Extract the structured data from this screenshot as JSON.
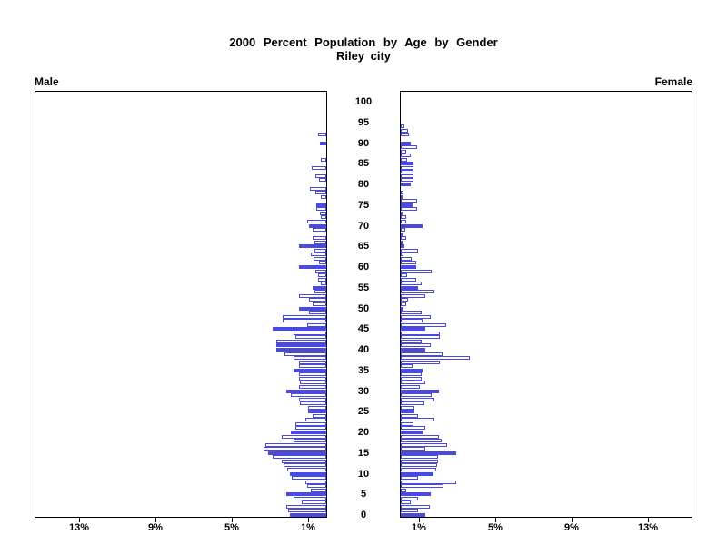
{
  "title": {
    "line1": "2000 Percent Population by Age by Gender",
    "line2": "Riley city"
  },
  "panel_labels": {
    "left": "Male",
    "right": "Female"
  },
  "axis": {
    "x_tick_values_pct": [
      1,
      5,
      9,
      13
    ],
    "x_tick_suffix": "%",
    "x_max_pct": 15.3,
    "age_axis_labels": [
      0,
      5,
      10,
      15,
      20,
      25,
      30,
      35,
      40,
      45,
      50,
      55,
      60,
      65,
      70,
      75,
      80,
      85,
      90,
      95,
      100
    ]
  },
  "colors": {
    "bar_blue": "#4a4ae0",
    "bar_white": "#ffffff",
    "frame_black": "#000000",
    "background": "#ffffff"
  },
  "chart_data": {
    "type": "bar",
    "subtype": "population-pyramid",
    "title": "2000 Percent Population by Age by Gender",
    "subtitle": "Riley city",
    "x_unit": "percent of total population",
    "xlabel_ticks": [
      "13%",
      "9%",
      "5%",
      "1%",
      "1%",
      "5%",
      "9%",
      "13%"
    ],
    "ylabel": "age in single years, 0 bottom to 100 top",
    "age_min": 0,
    "age_max": 100,
    "highlight_rule": "bars at ages divisible by 5 are solid filled blue; other ages are white with blue outline",
    "extra_filled_ages_male": [
      41
    ],
    "series": [
      {
        "name": "Male",
        "side": "left",
        "values_pct_by_age": [
          1.9,
          2.0,
          2.1,
          1.3,
          1.7,
          2.1,
          0.8,
          1.0,
          1.1,
          1.8,
          1.9,
          2.05,
          2.25,
          2.35,
          2.8,
          3.05,
          3.3,
          3.2,
          1.7,
          2.35,
          1.85,
          1.6,
          1.6,
          1.1,
          0.7,
          0.95,
          0.95,
          1.4,
          1.45,
          1.85,
          2.1,
          1.45,
          1.4,
          1.45,
          1.45,
          1.7,
          1.45,
          1.45,
          1.7,
          2.2,
          2.6,
          2.6,
          2.6,
          1.6,
          1.7,
          2.8,
          1.0,
          2.3,
          2.3,
          0.9,
          1.45,
          0.7,
          0.9,
          1.45,
          0.6,
          0.7,
          0.3,
          0.45,
          0.45,
          0.55,
          1.45,
          0.4,
          0.65,
          0.8,
          0.6,
          1.45,
          0.6,
          0.7,
          0,
          0.7,
          0.9,
          1.0,
          0.3,
          0.35,
          0.5,
          0.5,
          0,
          0.3,
          0.55,
          0.85,
          0,
          0.4,
          0.55,
          0,
          0.75,
          0,
          0.3,
          0,
          0,
          0,
          0.35,
          0,
          0.45,
          0,
          0,
          0,
          0,
          0,
          0,
          0,
          0
        ]
      },
      {
        "name": "Female",
        "side": "right",
        "values_pct_by_age": [
          1.3,
          0.9,
          1.5,
          0.5,
          0.9,
          1.55,
          0.3,
          2.25,
          2.9,
          0.9,
          1.7,
          1.85,
          1.9,
          1.95,
          1.95,
          2.9,
          1.3,
          2.45,
          2.15,
          2.0,
          1.15,
          1.3,
          0.65,
          1.75,
          0.9,
          0.7,
          0.7,
          1.25,
          1.75,
          1.6,
          2.0,
          1.0,
          1.3,
          1.1,
          1.1,
          1.15,
          0.6,
          2.05,
          3.6,
          2.2,
          1.3,
          1.55,
          1.1,
          2.05,
          2.05,
          1.3,
          2.4,
          1.15,
          1.55,
          1.1,
          0.15,
          0.3,
          0.4,
          1.3,
          1.75,
          0.9,
          1.1,
          0.8,
          0.35,
          1.6,
          0.8,
          0.8,
          0.55,
          0.15,
          0.9,
          0.2,
          0.1,
          0.3,
          0.1,
          0.25,
          1.15,
          0.3,
          0.3,
          0.1,
          0.85,
          0.6,
          0.85,
          0.1,
          0.15,
          0,
          0.5,
          0.65,
          0.65,
          0.65,
          0.65,
          0.65,
          0.35,
          0.5,
          0.3,
          0.85,
          0.5,
          0,
          0.45,
          0.4,
          0.2,
          0,
          0,
          0,
          0,
          0,
          0
        ]
      }
    ]
  }
}
